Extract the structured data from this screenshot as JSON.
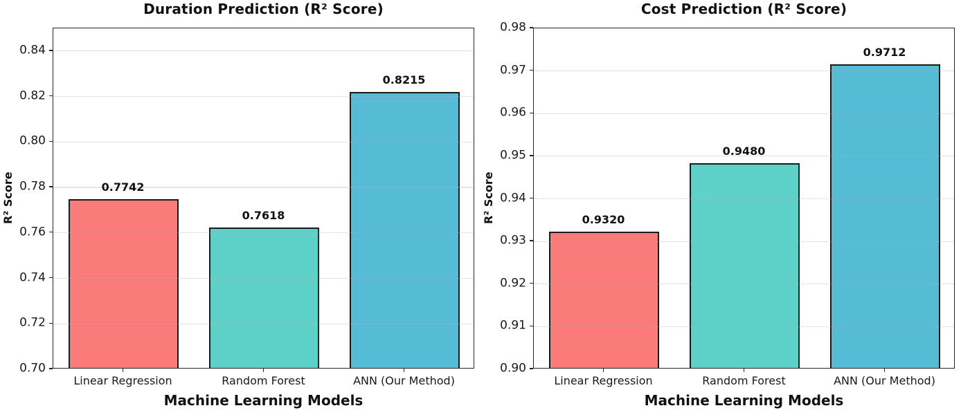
{
  "figure": {
    "background": "#ffffff",
    "text_color": "#111111"
  },
  "chart_data": [
    {
      "type": "bar",
      "title": "Duration Prediction (R² Score)",
      "xlabel": "Machine Learning Models",
      "ylabel": "R² Score",
      "categories": [
        "Linear Regression",
        "Random Forest",
        "ANN (Our Method)"
      ],
      "values": [
        0.7742,
        0.7618,
        0.8215
      ],
      "bar_labels": [
        "0.7742",
        "0.7618",
        "0.8215"
      ],
      "bar_colors": [
        "#FB7B7B",
        "#5DD1C8",
        "#56BBD5"
      ],
      "bar_edge_color": "#1a1a1a",
      "ylim": [
        0.7,
        0.85
      ],
      "yticks": [
        "0.70",
        "0.72",
        "0.74",
        "0.76",
        "0.78",
        "0.80",
        "0.82",
        "0.84"
      ],
      "grid": true,
      "legend_position": "none"
    },
    {
      "type": "bar",
      "title": "Cost Prediction (R² Score)",
      "xlabel": "Machine Learning Models",
      "ylabel": "R² Score",
      "categories": [
        "Linear Regression",
        "Random Forest",
        "ANN (Our Method)"
      ],
      "values": [
        0.932,
        0.948,
        0.9712
      ],
      "bar_labels": [
        "0.9320",
        "0.9480",
        "0.9712"
      ],
      "bar_colors": [
        "#FB7B7B",
        "#5DD1C8",
        "#56BBD5"
      ],
      "bar_edge_color": "#1a1a1a",
      "ylim": [
        0.9,
        0.98
      ],
      "yticks": [
        "0.90",
        "0.91",
        "0.92",
        "0.93",
        "0.94",
        "0.95",
        "0.96",
        "0.97",
        "0.98"
      ],
      "grid": true,
      "legend_position": "none"
    }
  ]
}
